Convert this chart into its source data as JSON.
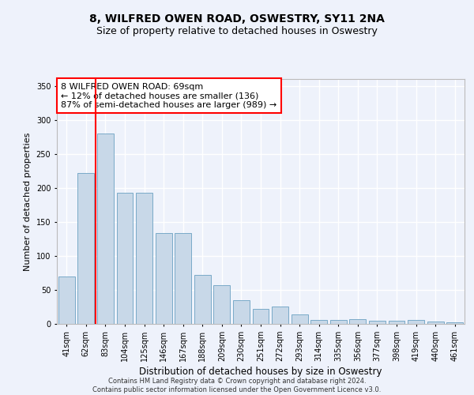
{
  "title1": "8, WILFRED OWEN ROAD, OSWESTRY, SY11 2NA",
  "title2": "Size of property relative to detached houses in Oswestry",
  "xlabel": "Distribution of detached houses by size in Oswestry",
  "ylabel": "Number of detached properties",
  "categories": [
    "41sqm",
    "62sqm",
    "83sqm",
    "104sqm",
    "125sqm",
    "146sqm",
    "167sqm",
    "188sqm",
    "209sqm",
    "230sqm",
    "251sqm",
    "272sqm",
    "293sqm",
    "314sqm",
    "335sqm",
    "356sqm",
    "377sqm",
    "398sqm",
    "419sqm",
    "440sqm",
    "461sqm"
  ],
  "bar_values": [
    70,
    222,
    280,
    193,
    193,
    133,
    133,
    72,
    57,
    35,
    22,
    25,
    14,
    6,
    6,
    7,
    5,
    5,
    6,
    3,
    2
  ],
  "bar_color": "#c8d8e8",
  "bar_edge_color": "#7aaac8",
  "red_line_x": 1.5,
  "annotation_text": "8 WILFRED OWEN ROAD: 69sqm\n← 12% of detached houses are smaller (136)\n87% of semi-detached houses are larger (989) →",
  "annotation_box_color": "white",
  "annotation_box_edge": "red",
  "footer": "Contains HM Land Registry data © Crown copyright and database right 2024.\nContains public sector information licensed under the Open Government Licence v3.0.",
  "ylim": [
    0,
    360
  ],
  "yticks": [
    0,
    50,
    100,
    150,
    200,
    250,
    300,
    350
  ],
  "bg_color": "#eef2fb",
  "grid_color": "#ffffff",
  "title1_fontsize": 10,
  "title2_fontsize": 9,
  "xlabel_fontsize": 8.5,
  "ylabel_fontsize": 8,
  "footer_fontsize": 6,
  "annot_fontsize": 8,
  "tick_fontsize": 7
}
